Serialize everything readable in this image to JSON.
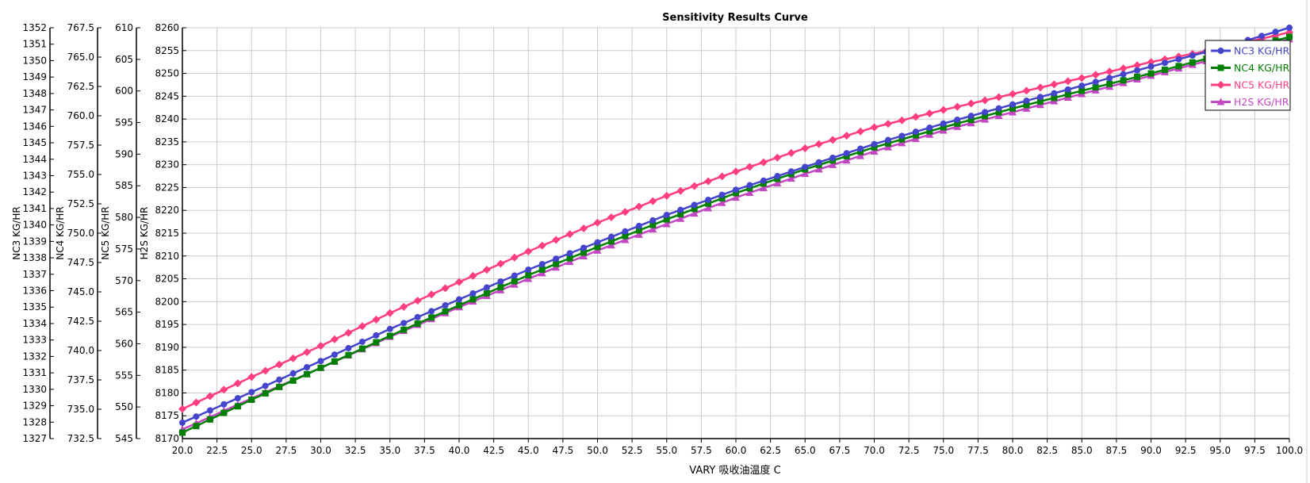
{
  "chart_data": {
    "type": "line",
    "title": "Sensitivity Results Curve",
    "xlabel": "VARY  吸收油温度 C",
    "xlim": [
      20,
      100
    ],
    "x_tick_step": 2.5,
    "x": [
      20,
      25,
      30,
      35,
      40,
      45,
      50,
      55,
      60,
      65,
      70,
      75,
      80,
      85,
      90,
      95,
      100
    ],
    "marker_step": 1,
    "grid": true,
    "legend_position": "top-right",
    "axes": [
      {
        "id": "nc3",
        "label": "NC3 KG/HR",
        "ylim": [
          1327,
          1352
        ],
        "tick_step": 1,
        "decimals": 0
      },
      {
        "id": "nc4",
        "label": "NC4 KG/HR",
        "ylim": [
          732.5,
          767.5
        ],
        "tick_step": 2.5,
        "decimals": 1
      },
      {
        "id": "nc5",
        "label": "NC5 KG/HR",
        "ylim": [
          545,
          610
        ],
        "tick_step": 5,
        "decimals": 0
      },
      {
        "id": "h2s",
        "label": "H2S KG/HR",
        "ylim": [
          8170,
          8260
        ],
        "tick_step": 5,
        "decimals": 0
      }
    ],
    "series": [
      {
        "name": "NC3 KG/HR",
        "axis": "nc3",
        "color": "#4444cc",
        "marker": "circle",
        "values": [
          1327.97,
          1329.83,
          1331.72,
          1333.67,
          1335.47,
          1337.28,
          1338.94,
          1340.61,
          1342.14,
          1343.53,
          1344.92,
          1346.17,
          1347.33,
          1348.47,
          1349.64,
          1350.75,
          1352.0
        ]
      },
      {
        "name": "NC4 KG/HR",
        "axis": "nc4",
        "color": "#008000",
        "marker": "square",
        "values": [
          733.01,
          735.81,
          738.53,
          741.25,
          743.86,
          746.42,
          748.83,
          751.17,
          753.42,
          755.44,
          757.31,
          759.02,
          760.62,
          762.13,
          763.61,
          765.17,
          766.72
        ]
      },
      {
        "name": "NC5 KG/HR",
        "axis": "nc5",
        "color": "#ff3d7f",
        "marker": "diamond",
        "values": [
          549.69,
          554.75,
          559.66,
          564.86,
          569.77,
          574.61,
          579.16,
          583.42,
          587.25,
          590.93,
          594.25,
          597.0,
          599.53,
          602.05,
          604.58,
          606.75,
          609.28
        ]
      },
      {
        "name": "H2S KG/HR",
        "axis": "h2s",
        "color": "#c347c3",
        "marker": "triangle",
        "values": [
          8172,
          8178.8,
          8185.5,
          8192.3,
          8198.8,
          8205,
          8211.2,
          8217,
          8222.8,
          8228,
          8232.9,
          8237.5,
          8241.5,
          8245.5,
          8249.5,
          8253.5,
          8257.5
        ]
      }
    ]
  }
}
